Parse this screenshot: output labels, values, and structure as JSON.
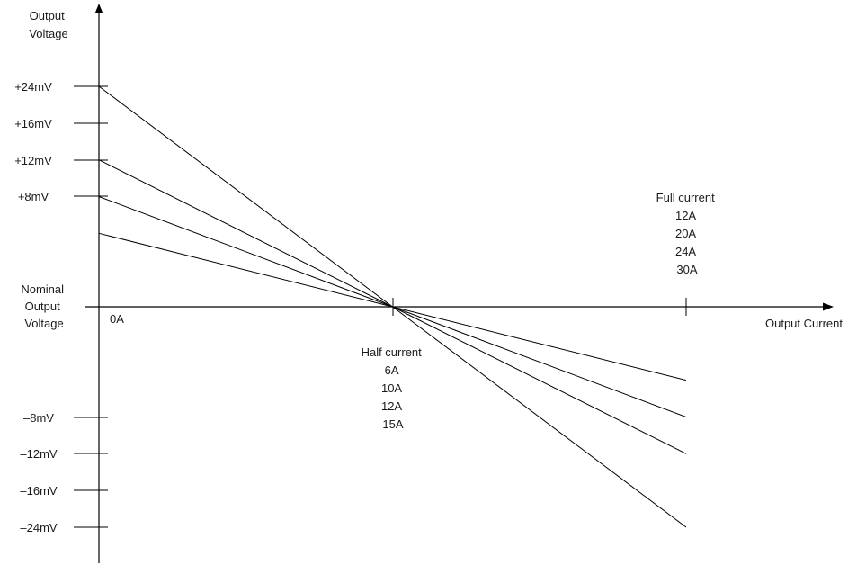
{
  "y_axis": {
    "title_lines": [
      "Output",
      "Voltage"
    ]
  },
  "x_axis": {
    "title": "Output Current",
    "origin_label": "0A"
  },
  "nominal_label_lines": [
    "Nominal",
    "Output",
    "Voltage"
  ],
  "positive_ticks": [
    "+24mV",
    "+16mV",
    "+12mV",
    "+8mV"
  ],
  "negative_ticks": [
    "–8mV",
    "–12mV",
    "–16mV",
    "–24mV"
  ],
  "half_current": {
    "lines": [
      "Half current",
      "6A",
      "10A",
      "12A",
      "15A"
    ]
  },
  "full_current": {
    "lines": [
      "Full current",
      "12A",
      "20A",
      "24A",
      "30A"
    ]
  },
  "chart_data": {
    "type": "line",
    "x": [
      0,
      0.5,
      1
    ],
    "x_tick_labels": [
      "0A",
      "Half current",
      "Full current"
    ],
    "series": [
      {
        "values": [
          24,
          0,
          -24
        ]
      },
      {
        "values": [
          16,
          0,
          -16
        ]
      },
      {
        "values": [
          12,
          0,
          -12
        ]
      },
      {
        "values": [
          8,
          0,
          -8
        ]
      }
    ],
    "xlabel": "Output Current",
    "ylabel": "Output Voltage",
    "y_tick_labels": [
      "+24mV",
      "+16mV",
      "+12mV",
      "+8mV",
      "Nominal Output Voltage",
      "–8mV",
      "–12mV",
      "–16mV",
      "–24mV"
    ],
    "grid": false
  }
}
